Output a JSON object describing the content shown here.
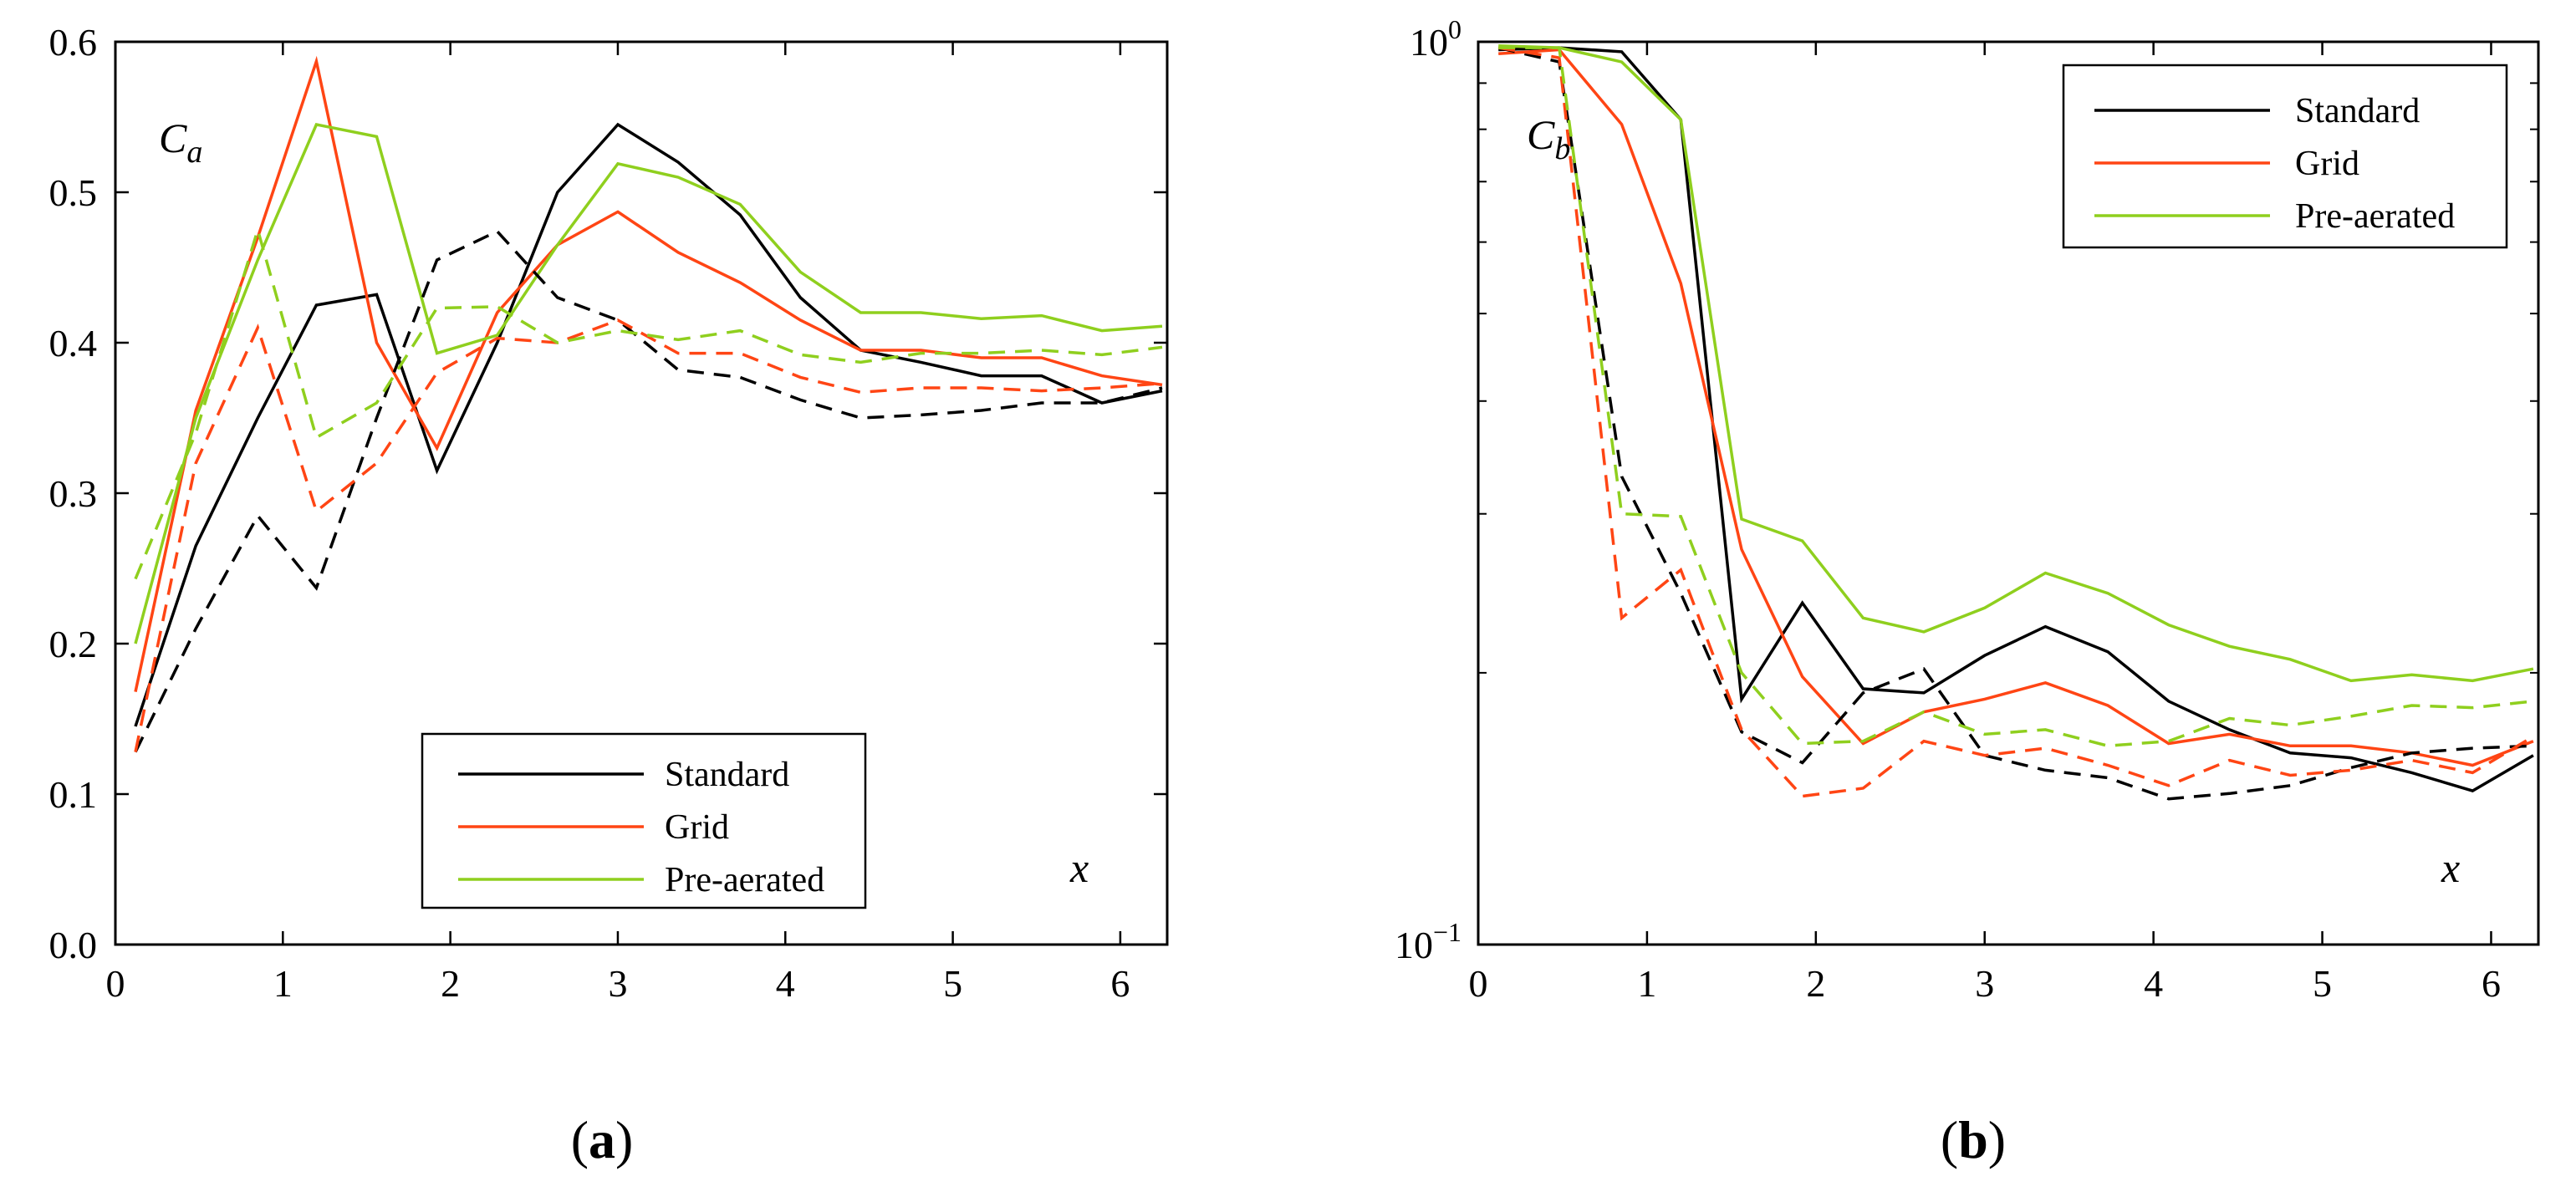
{
  "chart_data": [
    {
      "type": "line",
      "panel": "(a)",
      "panel_letter": "a",
      "ylabel": "C",
      "ylabel_sub": "a",
      "xlabel": "x",
      "xlim": [
        0,
        6.28
      ],
      "ylim": [
        0,
        0.6
      ],
      "yscale": "linear",
      "x_ticks": [
        0,
        1,
        2,
        3,
        4,
        5,
        6
      ],
      "x_tick_labels": [
        "0",
        "1",
        "2",
        "3",
        "4",
        "5",
        "6"
      ],
      "y_ticks": [
        0,
        0.1,
        0.2,
        0.3,
        0.4,
        0.5,
        0.6
      ],
      "y_tick_labels": [
        "0.0",
        "0.1",
        "0.2",
        "0.3",
        "0.4",
        "0.5",
        "0.6"
      ],
      "legend": {
        "placement": "bottom-center",
        "entries": [
          {
            "label": "Standard",
            "color": "#000000"
          },
          {
            "label": "Grid",
            "color": "#ff4514"
          },
          {
            "label": "Pre-aerated",
            "color": "#8fcf1e"
          }
        ]
      },
      "x": [
        0.12,
        0.48,
        0.85,
        1.2,
        1.56,
        1.92,
        2.28,
        2.64,
        3.0,
        3.36,
        3.73,
        4.09,
        4.45,
        4.81,
        5.17,
        5.53,
        5.89,
        6.25
      ],
      "series": [
        {
          "name": "Standard",
          "style": "solid",
          "color": "#000000",
          "values": [
            0.145,
            0.265,
            0.35,
            0.425,
            0.432,
            0.315,
            0.4,
            0.5,
            0.545,
            0.52,
            0.485,
            0.43,
            0.395,
            0.387,
            0.378,
            0.378,
            0.36,
            0.368
          ]
        },
        {
          "name": "Grid",
          "style": "solid",
          "color": "#ff4514",
          "values": [
            0.168,
            0.355,
            0.47,
            0.587,
            0.4,
            0.33,
            0.42,
            0.465,
            0.487,
            0.46,
            0.44,
            0.415,
            0.395,
            0.395,
            0.39,
            0.39,
            0.378,
            0.372
          ]
        },
        {
          "name": "Pre-aerated",
          "style": "solid",
          "color": "#8fcf1e",
          "values": [
            0.2,
            0.35,
            0.455,
            0.545,
            0.537,
            0.393,
            0.405,
            0.465,
            0.519,
            0.51,
            0.492,
            0.447,
            0.42,
            0.42,
            0.416,
            0.418,
            0.408,
            0.411
          ]
        },
        {
          "name": "Standard (dashed)",
          "style": "dashed",
          "color": "#000000",
          "values": [
            0.128,
            0.21,
            0.285,
            0.237,
            0.35,
            0.455,
            0.474,
            0.43,
            0.415,
            0.382,
            0.377,
            0.362,
            0.35,
            0.352,
            0.355,
            0.36,
            0.36,
            0.37
          ]
        },
        {
          "name": "Grid (dashed)",
          "style": "dashed",
          "color": "#ff4514",
          "values": [
            0.128,
            0.32,
            0.41,
            0.288,
            0.32,
            0.38,
            0.403,
            0.4,
            0.415,
            0.393,
            0.393,
            0.377,
            0.367,
            0.37,
            0.37,
            0.368,
            0.37,
            0.373
          ]
        },
        {
          "name": "Pre-aerated (dashed)",
          "style": "dashed",
          "color": "#8fcf1e",
          "values": [
            0.243,
            0.34,
            0.475,
            0.337,
            0.36,
            0.423,
            0.424,
            0.4,
            0.408,
            0.402,
            0.408,
            0.392,
            0.387,
            0.393,
            0.393,
            0.395,
            0.392,
            0.397
          ]
        }
      ]
    },
    {
      "type": "line",
      "panel": "(b)",
      "panel_letter": "b",
      "ylabel": "C",
      "ylabel_sub": "b",
      "xlabel": "x",
      "xlim": [
        0,
        6.28
      ],
      "ylim": [
        0.1,
        1.0
      ],
      "yscale": "log",
      "x_ticks": [
        0,
        1,
        2,
        3,
        4,
        5,
        6
      ],
      "x_tick_labels": [
        "0",
        "1",
        "2",
        "3",
        "4",
        "5",
        "6"
      ],
      "y_ticks": [
        0.1,
        1.0
      ],
      "y_tick_labels": [
        {
          "base": "10",
          "exp": "−1"
        },
        {
          "base": "10",
          "exp": "0"
        }
      ],
      "legend": {
        "placement": "top-right",
        "entries": [
          {
            "label": "Standard",
            "color": "#000000"
          },
          {
            "label": "Grid",
            "color": "#ff4514"
          },
          {
            "label": "Pre-aerated",
            "color": "#8fcf1e"
          }
        ]
      },
      "x": [
        0.12,
        0.48,
        0.85,
        1.2,
        1.56,
        1.92,
        2.28,
        2.64,
        3.0,
        3.36,
        3.73,
        4.09,
        4.45,
        4.81,
        5.17,
        5.53,
        5.89,
        6.25
      ],
      "series": [
        {
          "name": "Standard",
          "style": "solid",
          "color": "#000000",
          "values": [
            0.98,
            0.985,
            0.975,
            0.82,
            0.187,
            0.239,
            0.192,
            0.19,
            0.209,
            0.225,
            0.211,
            0.186,
            0.173,
            0.163,
            0.161,
            0.155,
            0.148,
            0.162
          ]
        },
        {
          "name": "Grid",
          "style": "solid",
          "color": "#ff4514",
          "values": [
            0.97,
            0.98,
            0.81,
            0.54,
            0.274,
            0.198,
            0.167,
            0.181,
            0.187,
            0.195,
            0.184,
            0.167,
            0.171,
            0.166,
            0.166,
            0.163,
            0.158,
            0.168
          ]
        },
        {
          "name": "Pre-aerated",
          "style": "solid",
          "color": "#8fcf1e",
          "values": [
            0.99,
            0.985,
            0.95,
            0.82,
            0.296,
            0.28,
            0.23,
            0.222,
            0.236,
            0.258,
            0.245,
            0.226,
            0.214,
            0.207,
            0.196,
            0.199,
            0.196,
            0.202
          ]
        },
        {
          "name": "Standard (dashed)",
          "style": "dashed",
          "color": "#000000",
          "values": [
            0.985,
            0.95,
            0.33,
            0.245,
            0.172,
            0.159,
            0.19,
            0.202,
            0.162,
            0.156,
            0.153,
            0.145,
            0.147,
            0.15,
            0.157,
            0.163,
            0.165,
            0.166
          ]
        },
        {
          "name": "Grid (dashed)",
          "style": "dashed",
          "color": "#ff4514",
          "values": [
            0.985,
            0.96,
            0.23,
            0.26,
            0.173,
            0.146,
            0.149,
            0.168,
            0.162,
            0.165,
            0.158,
            0.15,
            0.16,
            0.154,
            0.156,
            0.16,
            0.155,
            0.17
          ]
        },
        {
          "name": "Pre-aerated (dashed)",
          "style": "dashed",
          "color": "#8fcf1e",
          "values": [
            0.985,
            0.985,
            0.3,
            0.298,
            0.2,
            0.167,
            0.168,
            0.181,
            0.171,
            0.173,
            0.166,
            0.168,
            0.178,
            0.175,
            0.179,
            0.184,
            0.183,
            0.186
          ]
        }
      ]
    }
  ]
}
